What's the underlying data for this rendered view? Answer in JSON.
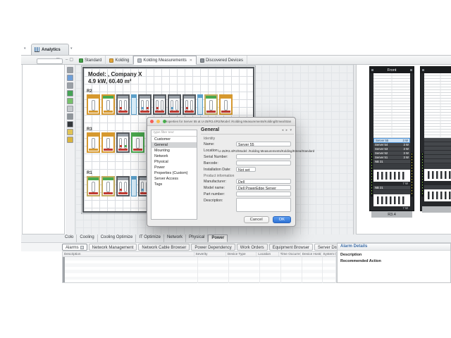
{
  "palette": {
    "orange": "#d6992f",
    "dark": "#565a5f",
    "grayHeader": "#9aa1a8",
    "red": "#c13a31",
    "blue": "#5b9fc9",
    "lightBlue": "#d7ebf7",
    "green": "#4aa84e",
    "tan": "#c4ad62",
    "none": "transparent"
  },
  "perspective": {
    "label": "Analytics",
    "left_chevron": "▾",
    "right_chevron": "▾"
  },
  "window_controls": {
    "minimize": "–",
    "maximize": "▢"
  },
  "editor_tabs": [
    {
      "label": "Standard",
      "icon": "standard-tab-icon",
      "icon_color": "#43a047",
      "active": false,
      "closable": false
    },
    {
      "label": "Kolding",
      "icon": "kolding-tab-icon",
      "icon_color": "#e2a63a",
      "active": false,
      "closable": false
    },
    {
      "label": "Kolding Measurements",
      "icon": "measurements-tab-icon",
      "icon_color": "#b8bec4",
      "active": true,
      "closable": true
    },
    {
      "label": "Discovered Devices",
      "icon": "search-icon",
      "icon_color": "#8d939a",
      "active": false,
      "closable": false
    }
  ],
  "close_glyph": "✕",
  "canvas_tools": [
    "#9aa0a6",
    "#6f9fd8",
    "#9aa0a6",
    "#46a356",
    "#77c06a",
    "#c6cacd",
    "#8f959a",
    "#33373b",
    "#e0c356",
    "#d9b43e"
  ],
  "side_tools": [
    "#9aa0a6",
    "#7aa7d8",
    "#9aa0a6",
    "#57a65c",
    "#8b9197"
  ],
  "floorplan": {
    "model_label": "Model: ,  Company X",
    "power_label": "4.9 kW,  60.40 m²",
    "rows": [
      {
        "label": "R2",
        "racks": [
          {
            "w": 19,
            "b": "orange",
            "h": "orange",
            "bot": "orange",
            "g": 1
          },
          {
            "w": 19,
            "b": "orange",
            "h": "green",
            "bot": "orange",
            "g": 1
          },
          {
            "w": 19,
            "b": "dark",
            "h": "grayHeader",
            "bot": "red",
            "g": 2,
            "chips": [
              "red"
            ]
          },
          {
            "w": 8,
            "b": "blue",
            "h": "blue",
            "bot": "none",
            "g": 0,
            "fill": "lightBlue"
          },
          {
            "w": 19,
            "b": "dark",
            "h": "grayHeader",
            "bot": "red",
            "g": 2,
            "chips": [
              "blue",
              "red"
            ]
          },
          {
            "w": 19,
            "b": "dark",
            "h": "grayHeader",
            "bot": "red",
            "g": 2,
            "chips": [
              "red"
            ]
          },
          {
            "w": 19,
            "b": "dark",
            "h": "grayHeader",
            "bot": "red",
            "g": 2,
            "chips": [
              "blue"
            ]
          },
          {
            "w": 19,
            "b": "dark",
            "h": "grayHeader",
            "bot": "red",
            "g": 2,
            "chips": [
              "red"
            ]
          },
          {
            "w": 8,
            "b": "blue",
            "h": "blue",
            "bot": "none",
            "g": 0,
            "fill": "lightBlue"
          },
          {
            "w": 19,
            "b": "tan",
            "h": "green",
            "bot": "red",
            "g": 1
          },
          {
            "w": 19,
            "b": "orange",
            "h": "orange",
            "bot": "red",
            "g": 1
          }
        ]
      },
      {
        "label": "R3",
        "racks": [
          {
            "w": 19,
            "b": "orange",
            "h": "orange",
            "bot": "orange",
            "g": 1
          },
          {
            "w": 19,
            "b": "orange",
            "h": "orange",
            "bot": "red",
            "g": 1
          },
          {
            "w": 19,
            "b": "dark",
            "h": "grayHeader",
            "bot": "red",
            "g": 2,
            "chips": [
              "red",
              "green"
            ]
          },
          {
            "w": 19,
            "b": "green",
            "h": "green",
            "bot": "red",
            "g": 1
          }
        ]
      },
      {
        "label": "R1",
        "racks": [
          {
            "w": 19,
            "b": "tan",
            "h": "green",
            "bot": "red",
            "g": 1
          },
          {
            "w": 19,
            "b": "tan",
            "h": "green",
            "bot": "red",
            "g": 1
          },
          {
            "w": 19,
            "b": "dark",
            "h": "grayHeader",
            "bot": "red",
            "g": 2,
            "chips": [
              "red"
            ]
          },
          {
            "w": 8,
            "b": "blue",
            "h": "blue",
            "bot": "none",
            "g": 0,
            "fill": "lightBlue"
          },
          {
            "w": 19,
            "b": "dark",
            "h": "grayHeader",
            "bot": "red",
            "g": 2,
            "chips": [
              "blue"
            ]
          },
          {
            "w": 19,
            "b": "dark",
            "h": "grayHeader",
            "bot": "red",
            "g": 2,
            "chips": [
              "red"
            ]
          }
        ]
      }
    ]
  },
  "dialog": {
    "title": "Properties for Server 55 at U-25/R3.4/R2/Model: /Kolding Measurements/Kolding/Emea/Standard",
    "filter_placeholder": "type filter text",
    "nav_items": [
      "Customer",
      "General",
      "Mounting",
      "Network",
      "Physical",
      "Power",
      "Properties (Custom)",
      "Server Access",
      "Tags"
    ],
    "active_nav": "General",
    "header": "General",
    "nav_arrows": "◂ ▸ ▾",
    "sections": {
      "identity": "Identity",
      "product": "Product information"
    },
    "identity_fields": [
      {
        "label": "Name:",
        "value": "Server 55",
        "type": "input"
      },
      {
        "label": "Location:",
        "value": "U-25/R3.4/R2/Model: /Kolding Measurements/Kolding/Emea/Standard",
        "type": "text"
      },
      {
        "label": "Serial Number:",
        "value": "",
        "type": "input"
      },
      {
        "label": "Barcode:",
        "value": "",
        "type": "input"
      },
      {
        "label": "Installation Date:",
        "value": "Not set",
        "type": "small"
      }
    ],
    "product_fields": [
      {
        "label": "Manufacturer:",
        "value": "Dell",
        "type": "input"
      },
      {
        "label": "Model name:",
        "value": "Dell PowerEdge Server",
        "type": "input"
      },
      {
        "label": "Part number:",
        "value": "",
        "type": "input"
      },
      {
        "label": "Description:",
        "value": "",
        "type": "textarea"
      }
    ],
    "cancel_label": "Cancel",
    "ok_label": "OK"
  },
  "rack_panel": {
    "racks": [
      {
        "title": "Front",
        "bottom_label": "R3.4",
        "units": [
          {
            "t": "sel",
            "label": "Server 55",
            "w": "3 W"
          },
          {
            "t": "srv",
            "label": "Server 54",
            "w": "3 W"
          },
          {
            "t": "srv",
            "label": "Server 53",
            "w": "3 W"
          },
          {
            "t": "srv",
            "label": "Server 52",
            "w": "3 W"
          },
          {
            "t": "srv",
            "label": "Server 51",
            "w": "3 W"
          },
          {
            "t": "srv",
            "label": "NB 31",
            "w": ""
          },
          {
            "t": "gap",
            "h": 8
          },
          {
            "t": "ch"
          },
          {
            "t": "w",
            "w": "7 W"
          },
          {
            "t": "srv",
            "label": "NB 21",
            "w": ""
          },
          {
            "t": "gap",
            "h": 6
          },
          {
            "t": "ch"
          },
          {
            "t": "w",
            "w": "7 W"
          }
        ]
      },
      {
        "title": "",
        "bottom_label": "",
        "units": [
          {
            "t": "srv",
            "label": "",
            "w": ""
          },
          {
            "t": "srv",
            "label": "",
            "w": ""
          },
          {
            "t": "srv",
            "label": "",
            "w": ""
          },
          {
            "t": "srv",
            "label": "",
            "w": ""
          },
          {
            "t": "srv",
            "label": "",
            "w": ""
          },
          {
            "t": "srv",
            "label": "",
            "w": ""
          },
          {
            "t": "gap",
            "h": 8
          },
          {
            "t": "ch"
          },
          {
            "t": "w",
            "w": ""
          },
          {
            "t": "gap",
            "h": 6
          },
          {
            "t": "ch"
          },
          {
            "t": "w",
            "w": ""
          }
        ]
      }
    ]
  },
  "bottom": {
    "view_tabs": [
      "Colo",
      "Cooling",
      "Cooling Optimize",
      "IT Optimize",
      "Network",
      "Physical",
      "Power"
    ],
    "active_view_tab": "Power",
    "panel_tabs": [
      "Alarms",
      "Network Management",
      "Network Cable Browser",
      "Power Dependency",
      "Work Orders",
      "Equipment Browser",
      "Server Discoveries",
      "Change Tickets"
    ],
    "active_panel_tab": "Alarms",
    "table_headers": [
      "Description",
      "Severity",
      "Device Type",
      "Location",
      "Time Occurred",
      "Device Hostname",
      "System Name"
    ],
    "table_row_count": 8
  },
  "alarm_details": {
    "title": "Alarm Details",
    "labels": [
      "Description",
      "Recommended Action"
    ]
  }
}
